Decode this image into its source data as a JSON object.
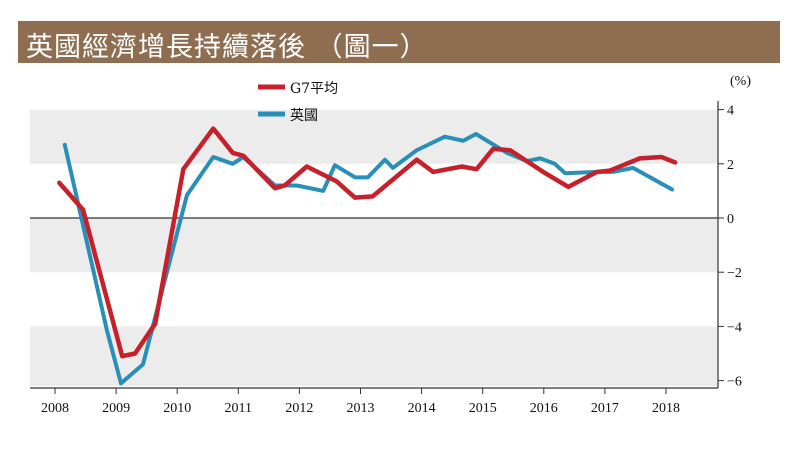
{
  "title": "英國經濟增長持續落後 （圖一）",
  "chart_data": {
    "type": "line",
    "title": "英國經濟增長持續落後 （圖一）",
    "ylabel": "(%)",
    "xlabel": "",
    "ylim": [
      -6,
      4
    ],
    "xlim": [
      2007.6,
      2018.85
    ],
    "yticks": [
      4,
      2,
      0,
      -2,
      -4,
      -6
    ],
    "ytick_labels": [
      "4",
      "2",
      "0",
      "-2",
      "-4",
      "-6"
    ],
    "xticks": [
      2008,
      2009,
      2010,
      2011,
      2012,
      2013,
      2014,
      2015,
      2016,
      2017,
      2018
    ],
    "xtick_labels": [
      "2008",
      "2009",
      "2010",
      "2011",
      "2012",
      "2013",
      "2014",
      "2015",
      "2016",
      "2017",
      "2018"
    ],
    "grid": "alternating horizontal bands",
    "legend_position": "top-center",
    "series": [
      {
        "name": "G7平均",
        "color": "#c8202a",
        "points": [
          [
            2008.07,
            1.3
          ],
          [
            2008.46,
            0.3
          ],
          [
            2009.1,
            -5.1
          ],
          [
            2009.31,
            -5.0
          ],
          [
            2009.64,
            -3.9
          ],
          [
            2010.1,
            1.8
          ],
          [
            2010.59,
            3.3
          ],
          [
            2010.91,
            2.4
          ],
          [
            2011.08,
            2.3
          ],
          [
            2011.6,
            1.1
          ],
          [
            2011.76,
            1.2
          ],
          [
            2012.12,
            1.9
          ],
          [
            2012.61,
            1.35
          ],
          [
            2012.91,
            0.75
          ],
          [
            2013.2,
            0.8
          ],
          [
            2013.92,
            2.15
          ],
          [
            2014.19,
            1.7
          ],
          [
            2014.66,
            1.9
          ],
          [
            2014.9,
            1.8
          ],
          [
            2015.17,
            2.55
          ],
          [
            2015.45,
            2.5
          ],
          [
            2015.99,
            1.7
          ],
          [
            2016.4,
            1.15
          ],
          [
            2016.87,
            1.7
          ],
          [
            2017.08,
            1.75
          ],
          [
            2017.57,
            2.2
          ],
          [
            2017.93,
            2.25
          ],
          [
            2018.15,
            2.05
          ]
        ]
      },
      {
        "name": "英國",
        "color": "#2a8fb8",
        "points": [
          [
            2008.16,
            2.7
          ],
          [
            2008.85,
            -4.15
          ],
          [
            2009.08,
            -6.1
          ],
          [
            2009.44,
            -5.4
          ],
          [
            2010.16,
            0.85
          ],
          [
            2010.59,
            2.25
          ],
          [
            2010.91,
            2.0
          ],
          [
            2011.08,
            2.25
          ],
          [
            2011.6,
            1.2
          ],
          [
            2011.96,
            1.2
          ],
          [
            2012.39,
            1.0
          ],
          [
            2012.58,
            1.95
          ],
          [
            2012.91,
            1.5
          ],
          [
            2013.12,
            1.5
          ],
          [
            2013.4,
            2.15
          ],
          [
            2013.53,
            1.85
          ],
          [
            2013.92,
            2.5
          ],
          [
            2014.38,
            3.0
          ],
          [
            2014.68,
            2.85
          ],
          [
            2014.89,
            3.1
          ],
          [
            2015.4,
            2.4
          ],
          [
            2015.72,
            2.1
          ],
          [
            2015.94,
            2.2
          ],
          [
            2016.18,
            2.0
          ],
          [
            2016.35,
            1.65
          ],
          [
            2016.87,
            1.7
          ],
          [
            2017.13,
            1.7
          ],
          [
            2017.46,
            1.85
          ],
          [
            2018.1,
            1.05
          ]
        ]
      }
    ]
  }
}
